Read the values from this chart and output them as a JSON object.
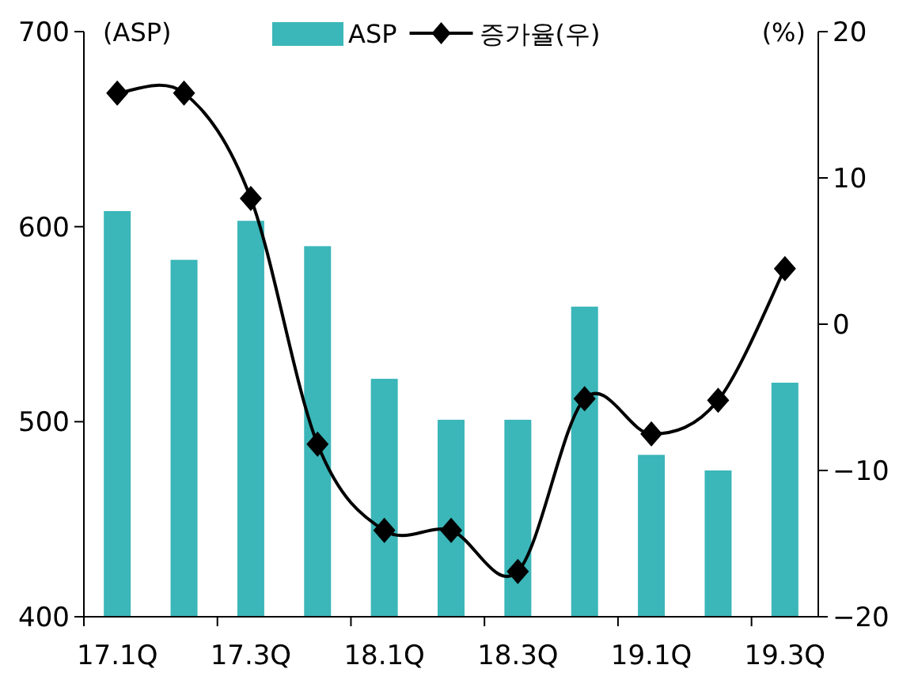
{
  "chart_data": {
    "type": "bar",
    "ylabel": "(ASP)",
    "y2label": "(%)",
    "categories": [
      "17.1Q",
      null,
      "17.3Q",
      null,
      "18.1Q",
      null,
      "18.3Q",
      null,
      "19.1Q",
      null,
      "19.3Q"
    ],
    "series": [
      {
        "name": "ASP",
        "color": "#3bb6b9",
        "values": [
          608,
          583,
          603,
          590,
          522,
          501,
          501,
          559,
          483,
          475,
          520
        ]
      },
      {
        "name": "증가율(우)",
        "type": "line",
        "axis": "y2",
        "color": "#000000",
        "marker": "diamond",
        "line_style": "solid",
        "values": [
          15.8,
          15.8,
          8.6,
          -8.2,
          -14.1,
          -14.1,
          -16.9,
          -5.1,
          -7.5,
          -5.2,
          3.8
        ]
      }
    ],
    "ylim": [
      400,
      700
    ],
    "yticks": [
      400,
      500,
      600,
      700
    ],
    "y2lim": [
      -20,
      20
    ],
    "y2ticks": [
      -20,
      -10,
      0,
      10,
      20
    ],
    "legend": "top",
    "grid": false
  }
}
